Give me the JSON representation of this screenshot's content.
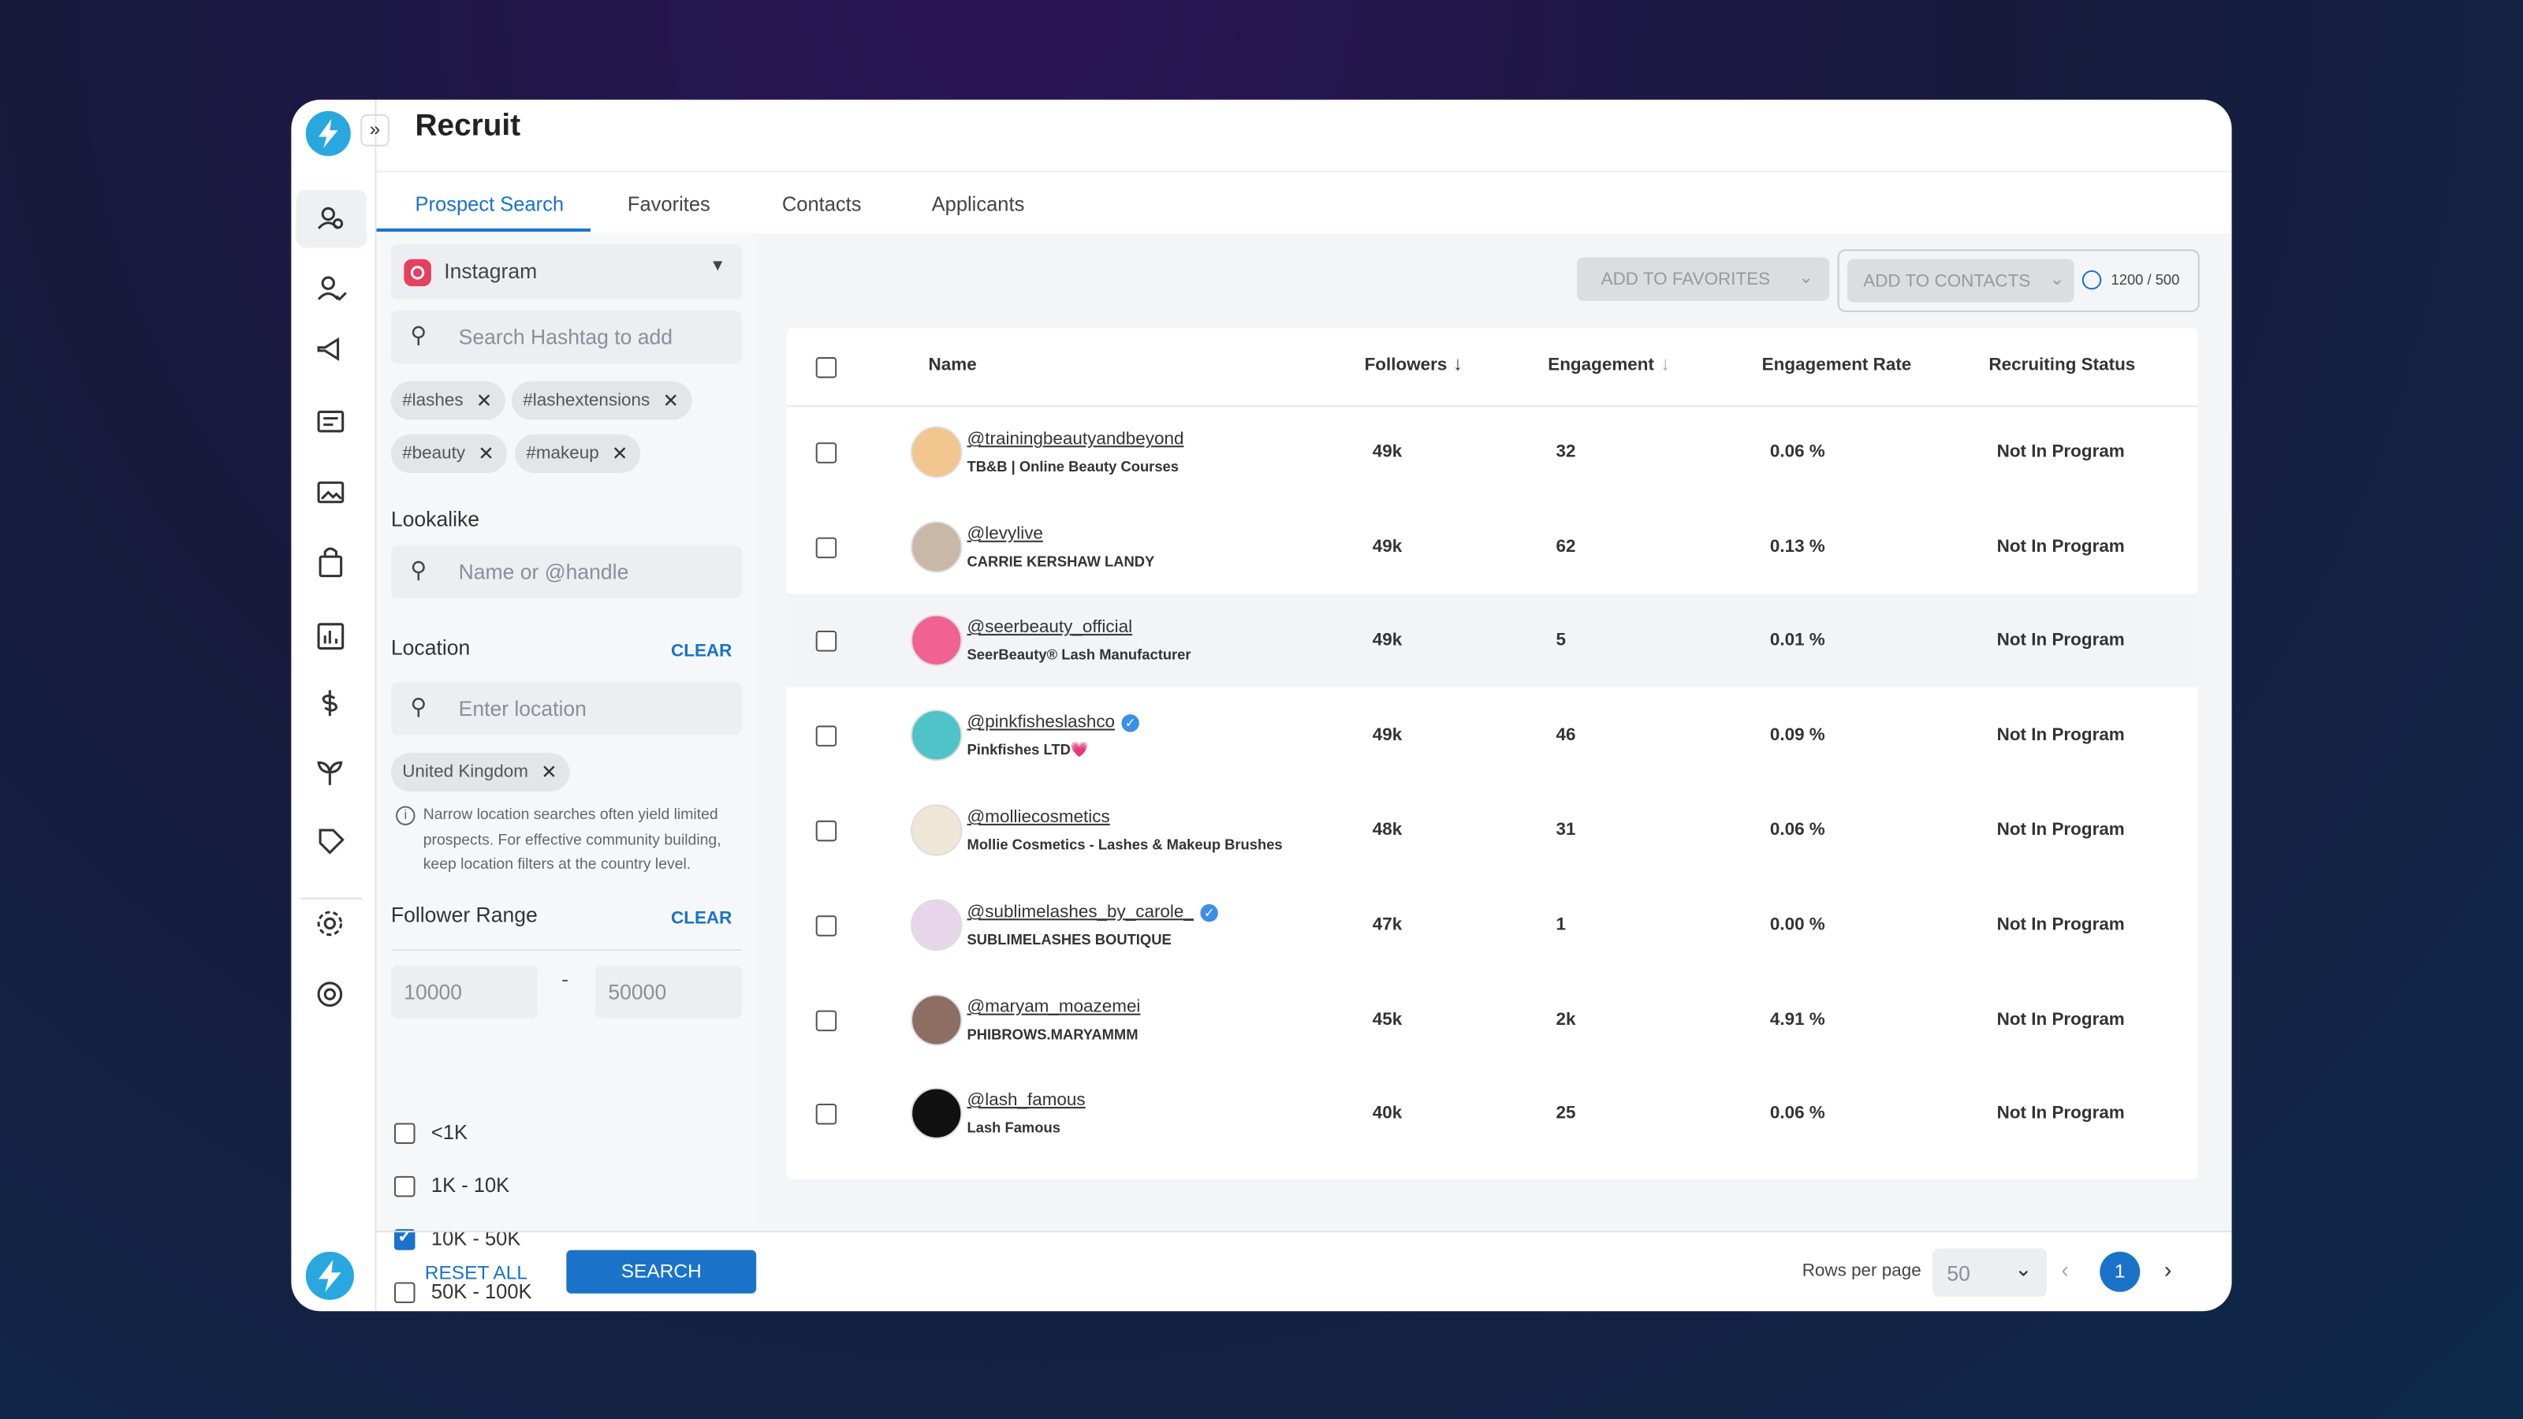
{
  "header": {
    "title": "Recruit"
  },
  "tabs": [
    "Prospect Search",
    "Favorites",
    "Contacts",
    "Applicants"
  ],
  "filters": {
    "platform": "Instagram",
    "hashtag_placeholder": "Search Hashtag to add",
    "hashtags": [
      "#lashes",
      "#lashextensions",
      "#beauty",
      "#makeup"
    ],
    "lookalike_label": "Lookalike",
    "lookalike_placeholder": "Name or @handle",
    "location_label": "Location",
    "location_clear": "CLEAR",
    "location_placeholder": "Enter location",
    "locations": [
      "United Kingdom"
    ],
    "location_note": "Narrow location searches often yield limited prospects. For effective community building, keep location filters at the country level.",
    "follower_range_label": "Follower Range",
    "follower_range_clear": "CLEAR",
    "follower_min": "10000",
    "range_separator": "-",
    "follower_max": "50000",
    "ranges": [
      {
        "label": "<1K",
        "checked": false
      },
      {
        "label": "1K - 10K",
        "checked": false
      },
      {
        "label": "10K - 50K",
        "checked": true
      },
      {
        "label": "50K - 100K",
        "checked": false
      }
    ]
  },
  "actions": {
    "reset": "RESET ALL",
    "search": "SEARCH"
  },
  "toolbar": {
    "add_favorites": "ADD TO FAVORITES",
    "add_contacts": "ADD TO CONTACTS",
    "quota": "1200 / 500"
  },
  "table": {
    "columns": [
      "Name",
      "Followers",
      "Engagement",
      "Engagement Rate",
      "Recruiting Status"
    ],
    "rows": [
      {
        "handle": "@trainingbeautyandbeyond",
        "name": "TB&B | Online Beauty Courses",
        "verified": false,
        "followers": "49k",
        "engagement": "32",
        "rate": "0.06 %",
        "status": "Not In Program"
      },
      {
        "handle": "@levylive",
        "name": "CARRIE KERSHAW LANDY",
        "verified": false,
        "followers": "49k",
        "engagement": "62",
        "rate": "0.13 %",
        "status": "Not In Program"
      },
      {
        "handle": "@seerbeauty_official",
        "name": "SeerBeauty® Lash Manufacturer",
        "verified": false,
        "followers": "49k",
        "engagement": "5",
        "rate": "0.01 %",
        "status": "Not In Program"
      },
      {
        "handle": "@pinkfisheslashco",
        "name": "Pinkfishes LTD💗",
        "verified": true,
        "followers": "49k",
        "engagement": "46",
        "rate": "0.09 %",
        "status": "Not In Program"
      },
      {
        "handle": "@molliecosmetics",
        "name": "Mollie Cosmetics - Lashes & Makeup Brushes",
        "verified": false,
        "followers": "48k",
        "engagement": "31",
        "rate": "0.06 %",
        "status": "Not In Program"
      },
      {
        "handle": "@sublimelashes_by_carole_",
        "name": "SUBLIMELASHES BOUTIQUE",
        "verified": true,
        "followers": "47k",
        "engagement": "1",
        "rate": "0.00 %",
        "status": "Not In Program"
      },
      {
        "handle": "@maryam_moazemei",
        "name": "PHIBROWS.MARYAMMM",
        "verified": false,
        "followers": "45k",
        "engagement": "2k",
        "rate": "4.91 %",
        "status": "Not In Program"
      },
      {
        "handle": "@lash_famous",
        "name": "Lash Famous",
        "verified": false,
        "followers": "40k",
        "engagement": "25",
        "rate": "0.06 %",
        "status": "Not In Program"
      }
    ]
  },
  "pagination": {
    "rows_per_page_label": "Rows per page",
    "rows_per_page": "50",
    "page": "1"
  }
}
